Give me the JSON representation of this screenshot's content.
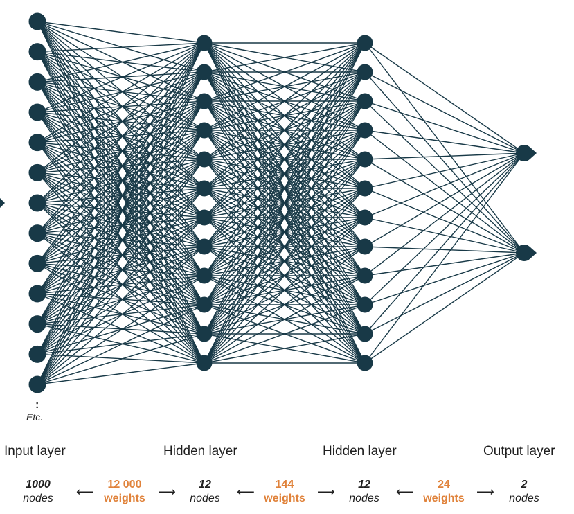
{
  "colors": {
    "node": "#183947",
    "edge": "#183947",
    "count_nodes": "#1f1f1f",
    "count_weights": "#e0823a"
  },
  "layers": [
    {
      "label": "Input layer",
      "nodes_visible": 13
    },
    {
      "label": "Hidden layer",
      "nodes_visible": 12
    },
    {
      "label": "Hidden layer",
      "nodes_visible": 12
    },
    {
      "label": "Output layer",
      "nodes_visible": 2
    }
  ],
  "ellipsis": {
    "dots": ":",
    "text": "Etc."
  },
  "counts": {
    "input_nodes": {
      "num": "1000",
      "unit": "nodes"
    },
    "w1": {
      "num": "12 000",
      "unit": "weights"
    },
    "h1_nodes": {
      "num": "12",
      "unit": "nodes"
    },
    "w2": {
      "num": "144",
      "unit": "weights"
    },
    "h2_nodes": {
      "num": "12",
      "unit": "nodes"
    },
    "w3": {
      "num": "24",
      "unit": "weights"
    },
    "output_nodes": {
      "num": "2",
      "unit": "nodes"
    }
  },
  "arrows": {
    "left": "⟵",
    "right": "⟶"
  }
}
